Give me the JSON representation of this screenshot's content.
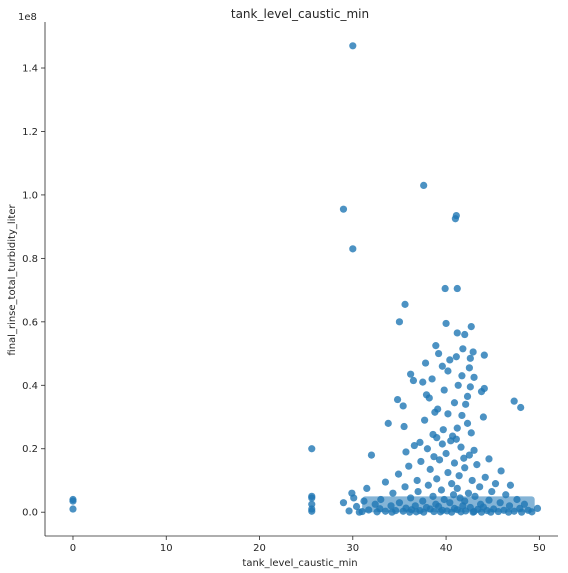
{
  "chart_data": {
    "type": "scatter",
    "title": "tank_level_caustic_min",
    "xlabel": "tank_level_caustic_min",
    "ylabel": "final_rinse_total_turbidity_liter",
    "y_offset_label": "1e8",
    "y_scale": 100000000,
    "xlim": [
      -3,
      52
    ],
    "ylim": [
      -0.075,
      1.545
    ],
    "x_ticks": [
      0,
      10,
      20,
      30,
      40,
      50
    ],
    "x_tick_labels": [
      "0",
      "10",
      "20",
      "30",
      "40",
      "50"
    ],
    "y_ticks": [
      0.0,
      0.2,
      0.4,
      0.6,
      0.8,
      1.0,
      1.2,
      1.4
    ],
    "y_tick_labels": [
      "0.0",
      "0.2",
      "0.4",
      "0.6",
      "0.8",
      "1.0",
      "1.2",
      "1.4"
    ],
    "grid": false,
    "marker_color": "#1f77b4",
    "marker_opacity": 0.8,
    "points": [
      {
        "x": 0,
        "y": 0.04
      },
      {
        "x": 0,
        "y": 0.035
      },
      {
        "x": 0,
        "y": 0.01
      },
      {
        "x": 25.6,
        "y": 0.2
      },
      {
        "x": 25.6,
        "y": 0.05
      },
      {
        "x": 25.6,
        "y": 0.045
      },
      {
        "x": 25.6,
        "y": 0.025
      },
      {
        "x": 25.6,
        "y": 0.01
      },
      {
        "x": 25.6,
        "y": 0.003
      },
      {
        "x": 30.0,
        "y": 1.47
      },
      {
        "x": 37.6,
        "y": 1.03
      },
      {
        "x": 29.0,
        "y": 0.955
      },
      {
        "x": 30.0,
        "y": 0.83
      },
      {
        "x": 41.1,
        "y": 0.935
      },
      {
        "x": 41.0,
        "y": 0.925
      },
      {
        "x": 39.9,
        "y": 0.705
      },
      {
        "x": 41.2,
        "y": 0.705
      },
      {
        "x": 35.6,
        "y": 0.655
      },
      {
        "x": 35.0,
        "y": 0.6
      },
      {
        "x": 40.0,
        "y": 0.595
      },
      {
        "x": 42.7,
        "y": 0.585
      },
      {
        "x": 41.2,
        "y": 0.565
      },
      {
        "x": 42.0,
        "y": 0.56
      },
      {
        "x": 38.9,
        "y": 0.525
      },
      {
        "x": 41.8,
        "y": 0.515
      },
      {
        "x": 39.2,
        "y": 0.5
      },
      {
        "x": 42.9,
        "y": 0.505
      },
      {
        "x": 44.1,
        "y": 0.495
      },
      {
        "x": 41.1,
        "y": 0.49
      },
      {
        "x": 42.6,
        "y": 0.485
      },
      {
        "x": 40.4,
        "y": 0.48
      },
      {
        "x": 37.8,
        "y": 0.47
      },
      {
        "x": 39.6,
        "y": 0.46
      },
      {
        "x": 42.5,
        "y": 0.455
      },
      {
        "x": 40.2,
        "y": 0.445
      },
      {
        "x": 36.2,
        "y": 0.435
      },
      {
        "x": 41.7,
        "y": 0.43
      },
      {
        "x": 43.0,
        "y": 0.425
      },
      {
        "x": 38.5,
        "y": 0.42
      },
      {
        "x": 36.5,
        "y": 0.415
      },
      {
        "x": 37.5,
        "y": 0.41
      },
      {
        "x": 41.3,
        "y": 0.4
      },
      {
        "x": 42.6,
        "y": 0.395
      },
      {
        "x": 44.1,
        "y": 0.39
      },
      {
        "x": 39.8,
        "y": 0.385
      },
      {
        "x": 43.8,
        "y": 0.38
      },
      {
        "x": 37.9,
        "y": 0.37
      },
      {
        "x": 42.3,
        "y": 0.365
      },
      {
        "x": 38.2,
        "y": 0.36
      },
      {
        "x": 34.8,
        "y": 0.355
      },
      {
        "x": 47.3,
        "y": 0.35
      },
      {
        "x": 40.9,
        "y": 0.345
      },
      {
        "x": 42.1,
        "y": 0.34
      },
      {
        "x": 35.4,
        "y": 0.335
      },
      {
        "x": 48.0,
        "y": 0.33
      },
      {
        "x": 39.1,
        "y": 0.325
      },
      {
        "x": 38.8,
        "y": 0.315
      },
      {
        "x": 40.2,
        "y": 0.31
      },
      {
        "x": 41.7,
        "y": 0.305
      },
      {
        "x": 44.0,
        "y": 0.3
      },
      {
        "x": 37.7,
        "y": 0.29
      },
      {
        "x": 42.3,
        "y": 0.28
      },
      {
        "x": 33.8,
        "y": 0.28
      },
      {
        "x": 35.5,
        "y": 0.27
      },
      {
        "x": 41.2,
        "y": 0.265
      },
      {
        "x": 39.7,
        "y": 0.26
      },
      {
        "x": 42.7,
        "y": 0.25
      },
      {
        "x": 38.6,
        "y": 0.245
      },
      {
        "x": 40.7,
        "y": 0.24
      },
      {
        "x": 39.0,
        "y": 0.235
      },
      {
        "x": 41.1,
        "y": 0.23
      },
      {
        "x": 40.5,
        "y": 0.225
      },
      {
        "x": 37.2,
        "y": 0.22
      },
      {
        "x": 39.6,
        "y": 0.215
      },
      {
        "x": 36.6,
        "y": 0.21
      },
      {
        "x": 41.6,
        "y": 0.205
      },
      {
        "x": 38.0,
        "y": 0.2
      },
      {
        "x": 43.0,
        "y": 0.195
      },
      {
        "x": 35.7,
        "y": 0.19
      },
      {
        "x": 40.0,
        "y": 0.185
      },
      {
        "x": 42.5,
        "y": 0.18
      },
      {
        "x": 32.0,
        "y": 0.18
      },
      {
        "x": 38.7,
        "y": 0.175
      },
      {
        "x": 41.9,
        "y": 0.17
      },
      {
        "x": 44.6,
        "y": 0.168
      },
      {
        "x": 39.3,
        "y": 0.165
      },
      {
        "x": 37.3,
        "y": 0.16
      },
      {
        "x": 40.9,
        "y": 0.155
      },
      {
        "x": 43.3,
        "y": 0.15
      },
      {
        "x": 36.0,
        "y": 0.145
      },
      {
        "x": 42.0,
        "y": 0.14
      },
      {
        "x": 38.3,
        "y": 0.135
      },
      {
        "x": 45.9,
        "y": 0.13
      },
      {
        "x": 40.2,
        "y": 0.125
      },
      {
        "x": 34.9,
        "y": 0.12
      },
      {
        "x": 41.4,
        "y": 0.115
      },
      {
        "x": 44.2,
        "y": 0.11
      },
      {
        "x": 39.0,
        "y": 0.105
      },
      {
        "x": 42.8,
        "y": 0.1
      },
      {
        "x": 36.9,
        "y": 0.1
      },
      {
        "x": 33.5,
        "y": 0.095
      },
      {
        "x": 45.3,
        "y": 0.09
      },
      {
        "x": 40.6,
        "y": 0.09
      },
      {
        "x": 46.9,
        "y": 0.085
      },
      {
        "x": 38.1,
        "y": 0.085
      },
      {
        "x": 43.6,
        "y": 0.08
      },
      {
        "x": 35.6,
        "y": 0.08
      },
      {
        "x": 41.2,
        "y": 0.075
      },
      {
        "x": 31.5,
        "y": 0.075
      },
      {
        "x": 39.5,
        "y": 0.07
      },
      {
        "x": 44.9,
        "y": 0.065
      },
      {
        "x": 37.0,
        "y": 0.065
      },
      {
        "x": 42.4,
        "y": 0.06
      },
      {
        "x": 34.3,
        "y": 0.06
      },
      {
        "x": 40.8,
        "y": 0.055
      },
      {
        "x": 46.4,
        "y": 0.055
      },
      {
        "x": 29.9,
        "y": 0.06
      },
      {
        "x": 30.1,
        "y": 0.045
      },
      {
        "x": 38.6,
        "y": 0.05
      },
      {
        "x": 43.1,
        "y": 0.05
      },
      {
        "x": 36.2,
        "y": 0.045
      },
      {
        "x": 41.5,
        "y": 0.045
      },
      {
        "x": 47.6,
        "y": 0.04
      },
      {
        "x": 33.0,
        "y": 0.04
      },
      {
        "x": 39.8,
        "y": 0.04
      },
      {
        "x": 44.6,
        "y": 0.038
      },
      {
        "x": 31.2,
        "y": 0.035
      },
      {
        "x": 37.5,
        "y": 0.035
      },
      {
        "x": 42.0,
        "y": 0.035
      },
      {
        "x": 35.0,
        "y": 0.03
      },
      {
        "x": 40.4,
        "y": 0.03
      },
      {
        "x": 45.8,
        "y": 0.03
      },
      {
        "x": 29.0,
        "y": 0.03
      },
      {
        "x": 48.4,
        "y": 0.025
      },
      {
        "x": 32.4,
        "y": 0.025
      },
      {
        "x": 38.9,
        "y": 0.025
      },
      {
        "x": 43.7,
        "y": 0.025
      },
      {
        "x": 36.7,
        "y": 0.02
      },
      {
        "x": 41.8,
        "y": 0.02
      },
      {
        "x": 46.8,
        "y": 0.02
      },
      {
        "x": 34.1,
        "y": 0.02
      },
      {
        "x": 30.4,
        "y": 0.018
      },
      {
        "x": 39.2,
        "y": 0.018
      },
      {
        "x": 44.0,
        "y": 0.016
      },
      {
        "x": 37.9,
        "y": 0.015
      },
      {
        "x": 42.6,
        "y": 0.015
      },
      {
        "x": 35.7,
        "y": 0.013
      },
      {
        "x": 47.9,
        "y": 0.012
      },
      {
        "x": 40.9,
        "y": 0.012
      },
      {
        "x": 32.9,
        "y": 0.011
      },
      {
        "x": 45.1,
        "y": 0.01
      },
      {
        "x": 38.3,
        "y": 0.01
      },
      {
        "x": 49.8,
        "y": 0.012
      },
      {
        "x": 43.4,
        "y": 0.009
      },
      {
        "x": 36.3,
        "y": 0.008
      },
      {
        "x": 41.2,
        "y": 0.008
      },
      {
        "x": 31.7,
        "y": 0.007
      },
      {
        "x": 48.8,
        "y": 0.006
      },
      {
        "x": 46.2,
        "y": 0.006
      },
      {
        "x": 39.6,
        "y": 0.006
      },
      {
        "x": 34.6,
        "y": 0.005
      },
      {
        "x": 44.4,
        "y": 0.005
      },
      {
        "x": 37.2,
        "y": 0.005
      },
      {
        "x": 42.1,
        "y": 0.004
      },
      {
        "x": 29.6,
        "y": 0.004
      },
      {
        "x": 40.1,
        "y": 0.004
      },
      {
        "x": 33.5,
        "y": 0.003
      },
      {
        "x": 47.3,
        "y": 0.003
      },
      {
        "x": 35.4,
        "y": 0.003
      },
      {
        "x": 38.7,
        "y": 0.002
      },
      {
        "x": 43.0,
        "y": 0.002
      },
      {
        "x": 45.6,
        "y": 0.002
      },
      {
        "x": 31.0,
        "y": 0.002
      },
      {
        "x": 36.8,
        "y": 0.001
      },
      {
        "x": 41.6,
        "y": 0.001
      },
      {
        "x": 49.2,
        "y": 0.001
      },
      {
        "x": 39.4,
        "y": 0.001
      },
      {
        "x": 32.6,
        "y": 0.001
      },
      {
        "x": 44.8,
        "y": 0.0
      },
      {
        "x": 37.6,
        "y": 0.0
      },
      {
        "x": 42.9,
        "y": 0.0
      },
      {
        "x": 34.2,
        "y": 0.0
      },
      {
        "x": 46.7,
        "y": 0.0
      },
      {
        "x": 40.6,
        "y": 0.0
      },
      {
        "x": 30.7,
        "y": 0.0
      },
      {
        "x": 48.1,
        "y": 0.0
      },
      {
        "x": 36.1,
        "y": 0.0
      },
      {
        "x": 43.8,
        "y": 0.0
      }
    ]
  }
}
